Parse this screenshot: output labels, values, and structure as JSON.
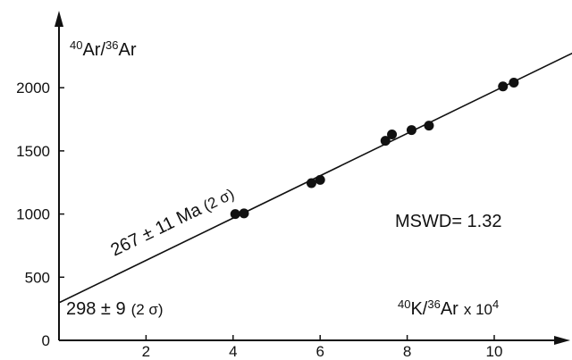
{
  "chart_data": {
    "type": "scatter",
    "title": "",
    "ylabel": {
      "base": "Ar/",
      "base2": "Ar",
      "sup1": "40",
      "sup2": "36"
    },
    "xlabel": {
      "sup1": "40",
      "mid": "K/",
      "sup2": "36",
      "mid2": "Ar",
      "factor": "x 10",
      "factor_exp": "4"
    },
    "xlim": [
      0,
      12
    ],
    "ylim": [
      0,
      2400
    ],
    "x_ticks": [
      2,
      4,
      6,
      8,
      10
    ],
    "y_ticks": [
      0,
      500,
      1000,
      1500,
      2000
    ],
    "grid": false,
    "series": [
      {
        "points": [
          {
            "x": 4.05,
            "y": 1000
          },
          {
            "x": 4.25,
            "y": 1005
          },
          {
            "x": 5.8,
            "y": 1245
          },
          {
            "x": 6.0,
            "y": 1270
          },
          {
            "x": 7.5,
            "y": 1580
          },
          {
            "x": 7.65,
            "y": 1630
          },
          {
            "x": 8.1,
            "y": 1665
          },
          {
            "x": 8.5,
            "y": 1700
          },
          {
            "x": 10.2,
            "y": 2010
          },
          {
            "x": 10.45,
            "y": 2040
          }
        ]
      }
    ],
    "fit_line": {
      "intercept": 298,
      "slope": 167.5
    },
    "annotations": {
      "age": {
        "text": "267 ± 11 Ma",
        "sigma": "(2 σ)"
      },
      "mswd": "MSWD= 1.32",
      "intercept": {
        "text": "298 ± 9",
        "sigma": "(2 σ)"
      }
    }
  }
}
